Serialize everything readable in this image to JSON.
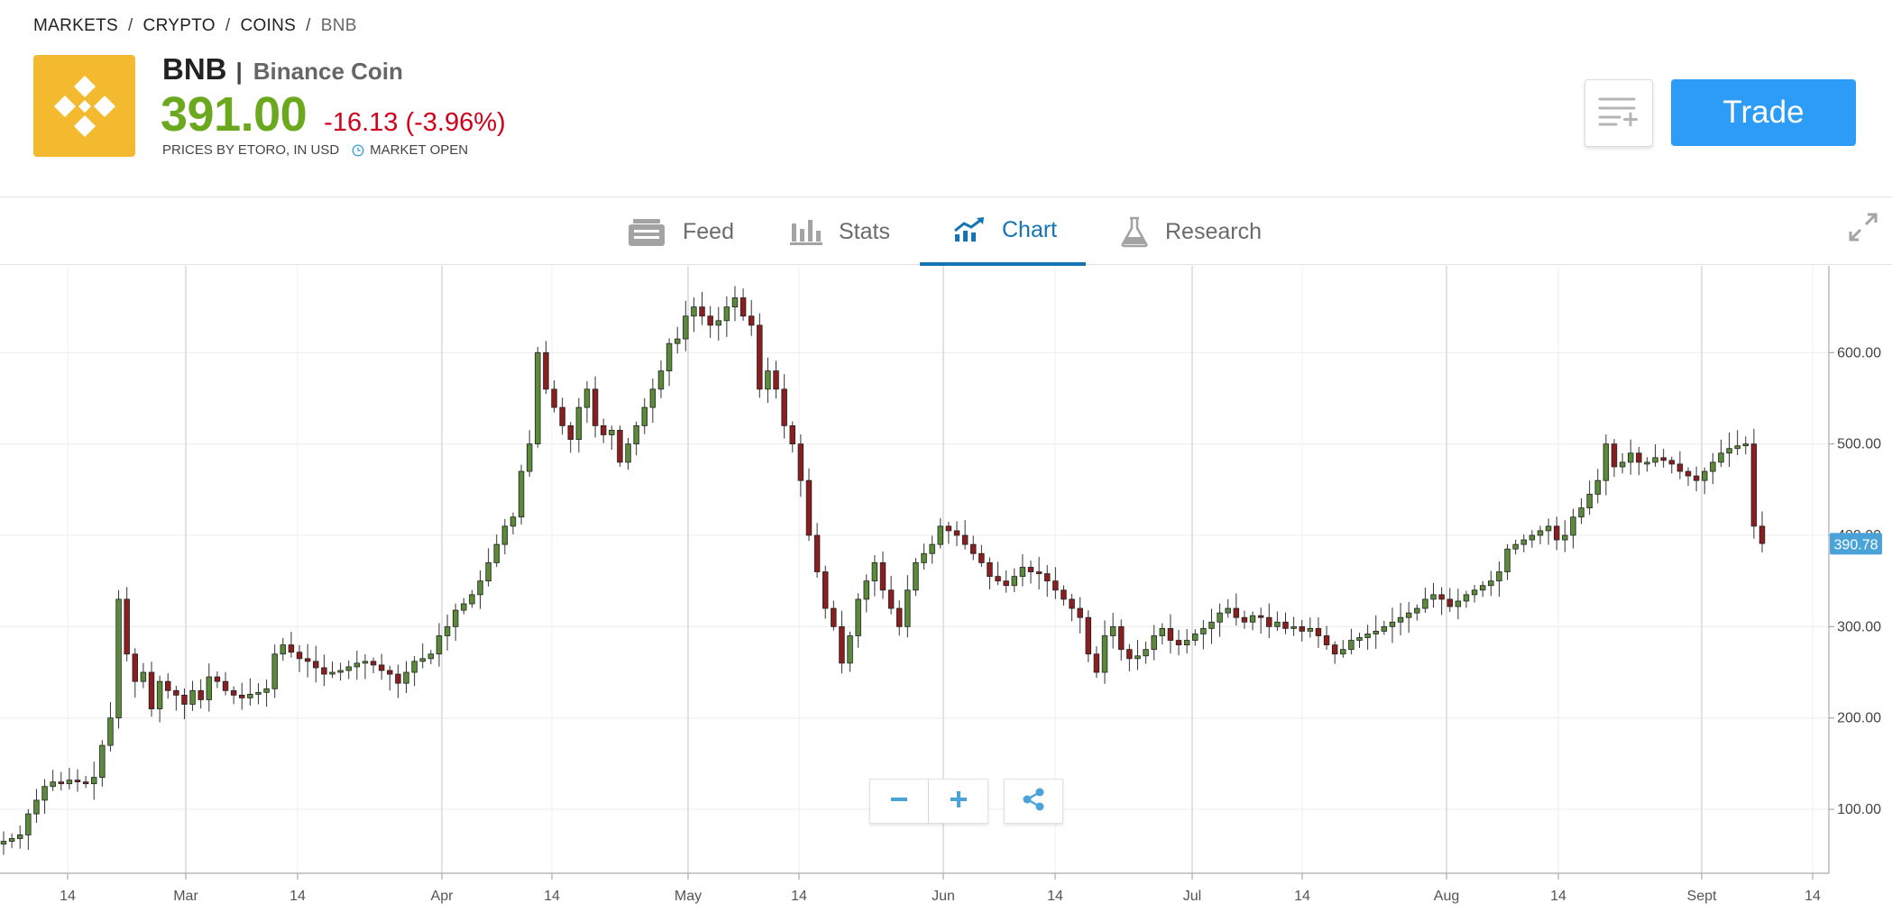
{
  "breadcrumb": {
    "items": [
      "MARKETS",
      "CRYPTO",
      "COINS",
      "BNB"
    ],
    "separator": "/"
  },
  "instrument": {
    "symbol": "BNB",
    "separator": "|",
    "name": "Binance Coin",
    "price": "391.00",
    "change": "-16.13 (-3.96%)",
    "source": "PRICES BY ETORO, IN USD",
    "market_status": "MARKET OPEN",
    "logo_icon": "binance-logo-icon",
    "logo_color": "#f3ba2f"
  },
  "actions": {
    "watchlist_icon": "add-to-watchlist-icon",
    "trade_label": "Trade",
    "trade_color": "#2d9cf7"
  },
  "tabs": [
    {
      "label": "Feed",
      "icon": "feed-icon",
      "active": false
    },
    {
      "label": "Stats",
      "icon": "stats-icon",
      "active": false
    },
    {
      "label": "Chart",
      "icon": "chart-icon",
      "active": true
    },
    {
      "label": "Research",
      "icon": "research-flask-icon",
      "active": false
    }
  ],
  "colors": {
    "price_up": "#6aa91e",
    "price_down": "#d0021b",
    "active_tab": "#1474b6",
    "candle_up": "#5a8a3a",
    "candle_down": "#8b1e1e",
    "current_label_bg": "#4aa3d8"
  },
  "chart_data": {
    "type": "candlestick",
    "x_tick_labels": [
      "14",
      "Mar",
      "14",
      "Apr",
      "14",
      "May",
      "14",
      "Jun",
      "14",
      "Jul",
      "14",
      "Aug",
      "14",
      "Sept",
      "14"
    ],
    "y_tick_labels": [
      "100.00",
      "200.00",
      "300.00",
      "400.00",
      "500.00",
      "600.00"
    ],
    "y_ticks": [
      100,
      200,
      300,
      400,
      500,
      600
    ],
    "ylim": [
      30,
      695
    ],
    "current_price_label": "390.78",
    "current_price": 390.78,
    "grid": true,
    "closes": [
      65,
      68,
      72,
      95,
      110,
      125,
      130,
      128,
      132,
      130,
      128,
      135,
      170,
      200,
      330,
      270,
      240,
      250,
      210,
      240,
      230,
      225,
      215,
      230,
      220,
      245,
      240,
      230,
      225,
      222,
      226,
      228,
      232,
      270,
      280,
      272,
      265,
      262,
      255,
      248,
      250,
      252,
      256,
      260,
      262,
      258,
      252,
      248,
      238,
      250,
      262,
      265,
      270,
      290,
      300,
      318,
      325,
      335,
      350,
      370,
      390,
      410,
      420,
      470,
      500,
      600,
      560,
      540,
      520,
      505,
      540,
      560,
      520,
      510,
      515,
      480,
      500,
      520,
      540,
      560,
      580,
      610,
      615,
      640,
      650,
      640,
      630,
      635,
      650,
      660,
      640,
      630,
      560,
      580,
      560,
      520,
      500,
      460,
      400,
      360,
      320,
      300,
      260,
      290,
      330,
      350,
      370,
      340,
      320,
      300,
      340,
      370,
      380,
      390,
      410,
      405,
      400,
      390,
      380,
      370,
      355,
      350,
      345,
      355,
      365,
      360,
      358,
      350,
      340,
      330,
      320,
      310,
      270,
      250,
      290,
      300,
      275,
      265,
      268,
      275,
      290,
      298,
      285,
      280,
      285,
      292,
      298,
      305,
      315,
      320,
      310,
      305,
      312,
      310,
      300,
      305,
      298,
      300,
      295,
      298,
      290,
      280,
      270,
      275,
      285,
      288,
      292,
      295,
      300,
      305,
      310,
      315,
      320,
      330,
      335,
      330,
      322,
      328,
      335,
      340,
      345,
      350,
      360,
      385,
      390,
      395,
      400,
      405,
      410,
      395,
      400,
      420,
      430,
      445,
      460,
      500,
      475,
      480,
      490,
      480,
      480,
      485,
      482,
      478,
      470,
      465,
      460,
      470,
      480,
      490,
      495,
      498,
      500,
      410,
      391
    ]
  }
}
